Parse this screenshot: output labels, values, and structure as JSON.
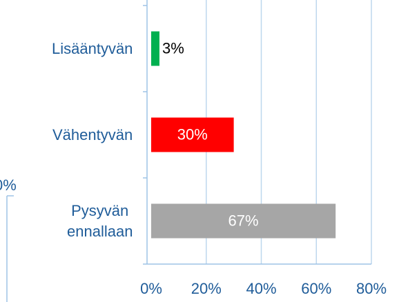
{
  "chart_data": {
    "type": "bar",
    "orientation": "horizontal",
    "categories": [
      "Lisääntyvän",
      "Vähentyvän",
      "Pysyvän ennallaan"
    ],
    "values": [
      3,
      30,
      67
    ],
    "value_labels": [
      "3%",
      "30%",
      "67%"
    ],
    "colors": [
      "#00b050",
      "#ff0000",
      "#a6a6a6"
    ],
    "xlim": [
      0,
      80
    ],
    "xticks": [
      {
        "value": 0,
        "label": "0%"
      },
      {
        "value": 20,
        "label": "20%"
      },
      {
        "value": 40,
        "label": "40%"
      },
      {
        "value": 60,
        "label": "60%"
      },
      {
        "value": 80,
        "label": "80%"
      }
    ],
    "grid": true,
    "annotations": [
      "0%"
    ]
  }
}
